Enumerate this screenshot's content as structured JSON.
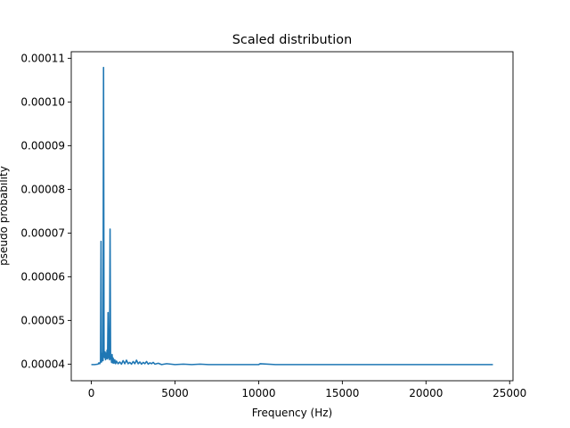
{
  "chart_data": {
    "type": "line",
    "title": "Scaled distribution",
    "xlabel": "Frequency (Hz)",
    "ylabel": "pseudo probability",
    "xlim": [
      -1200,
      25200
    ],
    "ylim": [
      3.62e-05,
      0.0001115
    ],
    "xticks": [
      0,
      5000,
      10000,
      15000,
      20000,
      25000
    ],
    "xtick_labels": [
      "0",
      "5000",
      "10000",
      "15000",
      "20000",
      "25000"
    ],
    "yticks": [
      4e-05,
      5e-05,
      6e-05,
      7e-05,
      8e-05,
      9e-05,
      0.0001,
      0.00011
    ],
    "ytick_labels": [
      "0.00004",
      "0.00005",
      "0.00006",
      "0.00007",
      "0.00008",
      "0.00009",
      "0.00010",
      "0.00011"
    ],
    "grid": false,
    "color": "#1f77b4",
    "series": [
      {
        "x": [
          0,
          200,
          400,
          450,
          500,
          550,
          580,
          610,
          640,
          670,
          700,
          730,
          760,
          790,
          820,
          850,
          880,
          910,
          940,
          970,
          1000,
          1030,
          1060,
          1090,
          1120,
          1150,
          1180,
          1210,
          1240,
          1270,
          1300,
          1350,
          1400,
          1450,
          1500,
          1600,
          1700,
          1800,
          1900,
          2000,
          2100,
          2200,
          2300,
          2400,
          2500,
          2600,
          2700,
          2800,
          2900,
          3000,
          3100,
          3200,
          3300,
          3400,
          3500,
          3600,
          3700,
          3800,
          4000,
          4200,
          4500,
          5000,
          5500,
          6000,
          6500,
          7000,
          8000,
          9000,
          10000,
          10100,
          11000,
          12000,
          14000,
          16000,
          18000,
          20000,
          22000,
          24000
        ],
        "y": [
          3.99e-05,
          3.99e-05,
          4e-05,
          4.03e-05,
          4.01e-05,
          4.05e-05,
          6.81e-05,
          4.05e-05,
          4.12e-05,
          4.25e-05,
          4.08e-05,
          0.0001079,
          4.2e-05,
          4.15e-05,
          4.28e-05,
          4.1e-05,
          4.25e-05,
          4.13e-05,
          4.32e-05,
          4.12e-05,
          5.18e-05,
          4.15e-05,
          4.25e-05,
          4.1e-05,
          7.09e-05,
          4.12e-05,
          4.18e-05,
          4.04e-05,
          4.22e-05,
          4.03e-05,
          4.14e-05,
          4.02e-05,
          4.1e-05,
          4.01e-05,
          4.07e-05,
          4.01e-05,
          4.05e-05,
          4e-05,
          4.08e-05,
          4.01e-05,
          4.09e-05,
          4.01e-05,
          4.04e-05,
          4e-05,
          4.06e-05,
          4.01e-05,
          4.09e-05,
          4.01e-05,
          4.05e-05,
          4e-05,
          4.04e-05,
          4.01e-05,
          4.06e-05,
          4e-05,
          4.03e-05,
          4.01e-05,
          4.04e-05,
          4e-05,
          4.02e-05,
          3.99e-05,
          4.01e-05,
          3.99e-05,
          4e-05,
          3.99e-05,
          4e-05,
          3.99e-05,
          3.99e-05,
          3.99e-05,
          3.99e-05,
          4.01e-05,
          3.99e-05,
          3.99e-05,
          3.99e-05,
          3.99e-05,
          3.99e-05,
          3.99e-05,
          3.99e-05,
          3.99e-05
        ]
      }
    ]
  }
}
